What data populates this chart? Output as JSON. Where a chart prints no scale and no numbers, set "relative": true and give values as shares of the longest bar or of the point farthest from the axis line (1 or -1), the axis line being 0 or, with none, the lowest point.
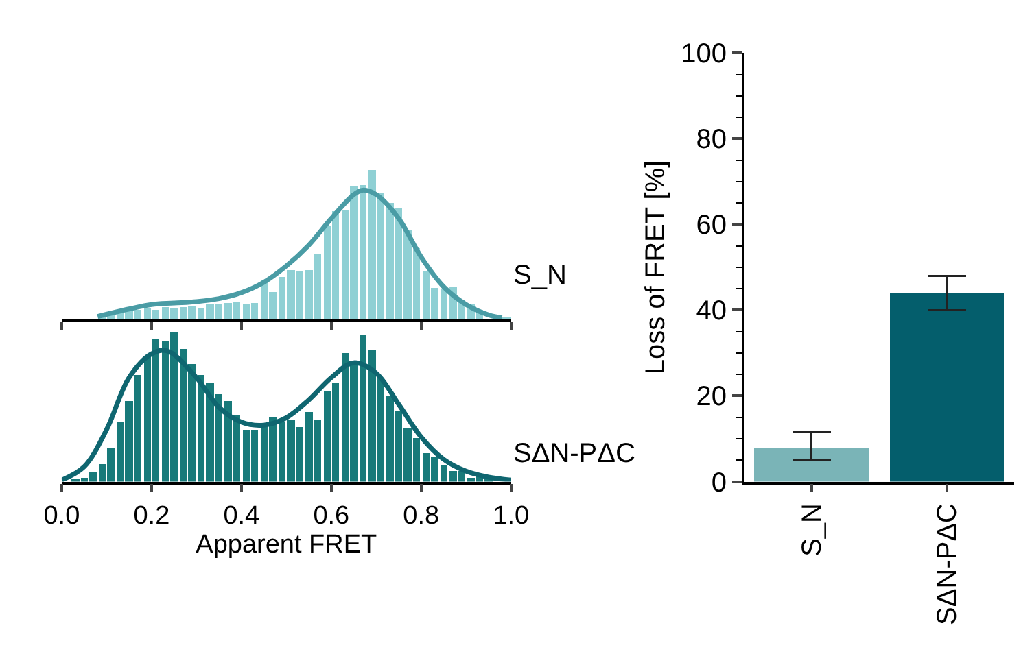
{
  "chart_data": [
    {
      "type": "histogram",
      "relative": true,
      "xlim": [
        0,
        1.0
      ],
      "xticks": [
        0,
        0.2,
        0.4,
        0.6,
        0.8,
        1.0
      ],
      "tick_labels": false,
      "bins": [
        0,
        0.02,
        0.04,
        0.06,
        0.08,
        0.1,
        0.12,
        0.14,
        0.16,
        0.18,
        0.2,
        0.22,
        0.24,
        0.26,
        0.28,
        0.3,
        0.32,
        0.34,
        0.36,
        0.38,
        0.4,
        0.42,
        0.44,
        0.46,
        0.48,
        0.5,
        0.52,
        0.54,
        0.56,
        0.58,
        0.6,
        0.62,
        0.64,
        0.66,
        0.68,
        0.7,
        0.72,
        0.74,
        0.76,
        0.78,
        0.8,
        0.82,
        0.84,
        0.86,
        0.88,
        0.9,
        0.92,
        0.94,
        0.96,
        0.98,
        1.0
      ],
      "series": [
        {
          "name": "S_N",
          "color": "#8fd0d4",
          "values": [
            0,
            0,
            0,
            0,
            0.02,
            0.03,
            0.04,
            0.05,
            0.06,
            0.07,
            0.06,
            0.08,
            0.07,
            0.08,
            0.09,
            0.07,
            0.1,
            0.1,
            0.11,
            0.12,
            0.1,
            0.11,
            0.27,
            0.18,
            0.28,
            0.33,
            0.32,
            0.33,
            0.44,
            0.63,
            0.73,
            0.74,
            0.89,
            0.9,
            1.0,
            0.85,
            0.78,
            0.75,
            0.6,
            0.48,
            0.32,
            0.21,
            0.2,
            0.22,
            0.13,
            0.1,
            0.06,
            null,
            null,
            0.01
          ]
        },
        {
          "type": "line",
          "color": "#4a9ca5",
          "x": [
            0.08,
            0.15,
            0.2,
            0.25,
            0.3,
            0.35,
            0.4,
            0.45,
            0.5,
            0.55,
            0.6,
            0.65,
            0.67,
            0.7,
            0.75,
            0.8,
            0.85,
            0.9,
            0.95,
            0.98
          ],
          "values": [
            0.02,
            0.07,
            0.1,
            0.11,
            0.12,
            0.14,
            0.18,
            0.25,
            0.36,
            0.5,
            0.68,
            0.84,
            0.87,
            0.84,
            0.68,
            0.42,
            0.22,
            0.1,
            0.03,
            0.01
          ]
        }
      ]
    },
    {
      "type": "histogram",
      "relative": true,
      "xlim": [
        0,
        1.0
      ],
      "xlabel": "Apparent FRET",
      "xticks": [
        {
          "value": 0,
          "label": "0.0"
        },
        {
          "value": 0.2,
          "label": "0.2"
        },
        {
          "value": 0.4,
          "label": "0.4"
        },
        {
          "value": 0.6,
          "label": "0.6"
        },
        {
          "value": 0.8,
          "label": "0.8"
        },
        {
          "value": 1.0,
          "label": "1.0"
        }
      ],
      "bins": [
        0,
        0.02,
        0.04,
        0.06,
        0.08,
        0.1,
        0.12,
        0.14,
        0.16,
        0.18,
        0.2,
        0.22,
        0.24,
        0.26,
        0.28,
        0.3,
        0.32,
        0.34,
        0.36,
        0.38,
        0.4,
        0.42,
        0.44,
        0.46,
        0.48,
        0.5,
        0.52,
        0.54,
        0.56,
        0.58,
        0.6,
        0.62,
        0.64,
        0.66,
        0.68,
        0.7,
        0.72,
        0.74,
        0.76,
        0.78,
        0.8,
        0.82,
        0.84,
        0.86,
        0.88,
        0.9,
        0.92,
        0.94,
        0.96,
        0.98,
        1.0
      ],
      "series": [
        {
          "name": "SΔN-PΔC",
          "color": "#187a7a",
          "values": [
            0,
            0.01,
            0.03,
            0.06,
            0.12,
            0.23,
            0.4,
            0.54,
            0.72,
            0.84,
            0.96,
            0.95,
            1.0,
            0.89,
            0.79,
            0.72,
            0.66,
            0.59,
            0.54,
            0.45,
            0.35,
            0.35,
            0.38,
            0.43,
            0.4,
            0.41,
            0.37,
            0.47,
            0.41,
            0.61,
            0.66,
            0.87,
            0.78,
            0.99,
            0.88,
            0.7,
            0.58,
            0.48,
            0.36,
            0.29,
            0.19,
            0.16,
            0.11,
            0.07,
            0.07,
            0.03,
            0.04,
            0.02,
            null,
            null
          ]
        },
        {
          "type": "line",
          "color": "#0f6670",
          "x": [
            0,
            0.05,
            0.1,
            0.15,
            0.2,
            0.235,
            0.3,
            0.35,
            0.4,
            0.45,
            0.5,
            0.55,
            0.6,
            0.65,
            0.7,
            0.75,
            0.8,
            0.85,
            0.9,
            0.95,
            1.0
          ],
          "values": [
            0.01,
            0.1,
            0.35,
            0.7,
            0.86,
            0.88,
            0.7,
            0.5,
            0.4,
            0.38,
            0.43,
            0.55,
            0.7,
            0.8,
            0.73,
            0.52,
            0.3,
            0.15,
            0.07,
            0.03,
            0.01
          ]
        }
      ]
    },
    {
      "type": "bar",
      "categories": [
        "S_N",
        "SΔN-PΔC"
      ],
      "values": [
        8,
        44
      ],
      "colors": [
        "#7ab4b7",
        "#045e6c"
      ],
      "errors": [
        [
          5,
          11.5
        ],
        [
          40,
          48
        ]
      ],
      "ylabel": "Loss of FRET [%]",
      "ylim": [
        0,
        100
      ],
      "yticks": [
        0,
        20,
        40,
        60,
        80,
        100
      ]
    }
  ]
}
